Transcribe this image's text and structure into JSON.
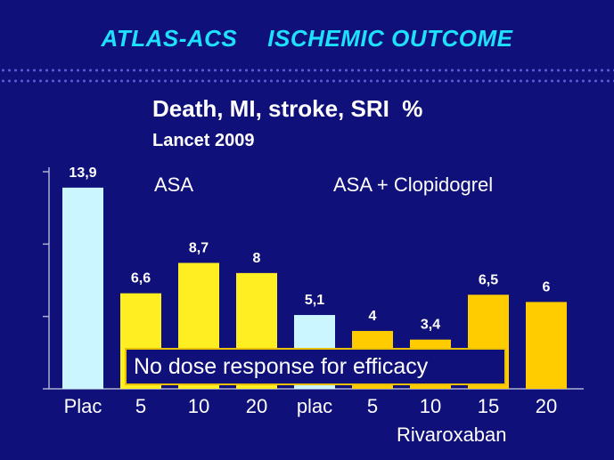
{
  "slide": {
    "title_left": "ATLAS-ACS",
    "title_right": "ISCHEMIC OUTCOME",
    "group_asa": "ASA",
    "group_asa_clopi": "ASA + Clopidogrel",
    "callout": "No dose response for efficacy",
    "x_group_label": "Rivaroxaban"
  },
  "colors": {
    "background": "#10107a",
    "title": "#1ee0ff",
    "placebo": "#ccf6ff",
    "asa_dose": "#ffee22",
    "clopi_dose": "#ffcc00",
    "callout_border": "#e8c000"
  },
  "chart_data": {
    "type": "bar",
    "title": "Death, MI, stroke, SRI  %",
    "subtitle": "Lancet 2009",
    "categories": [
      "Plac",
      "5",
      "10",
      "20",
      "plac",
      "5",
      "10",
      "15",
      "20"
    ],
    "values": [
      13.9,
      6.6,
      8.7,
      8,
      5.1,
      4,
      3.4,
      6.5,
      6
    ],
    "value_labels": [
      "13,9",
      "6,6",
      "8,7",
      "8",
      "5,1",
      "4",
      "3,4",
      "6,5",
      "6"
    ],
    "bar_groups": [
      "placebo",
      "asa_dose",
      "asa_dose",
      "asa_dose",
      "placebo",
      "clopi_dose",
      "clopi_dose",
      "clopi_dose",
      "clopi_dose"
    ],
    "ylim": [
      0,
      15
    ],
    "y_ticks": [
      0,
      5,
      10,
      15
    ],
    "grid": false,
    "legend": "none"
  }
}
